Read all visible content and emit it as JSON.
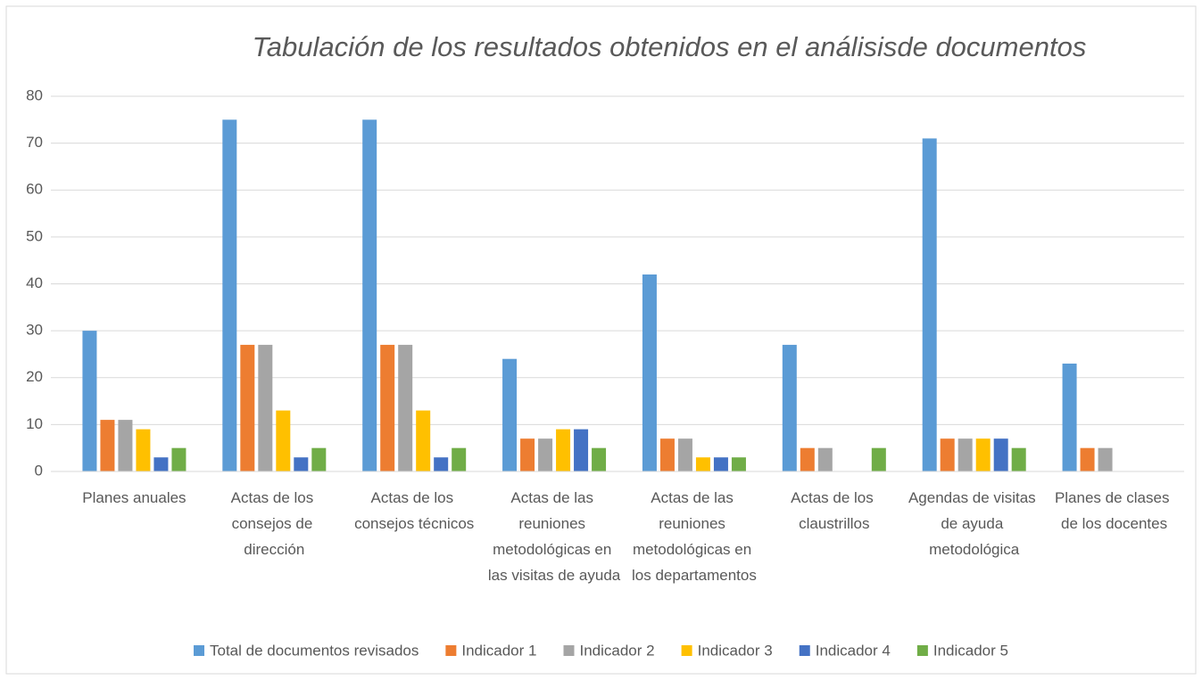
{
  "chart_data": {
    "type": "bar",
    "title": "Tabulación de los resultados obtenidos en el análisisde documentos",
    "categories": [
      "Planes anuales",
      "Actas de los consejos de dirección",
      "Actas de los consejos técnicos",
      "Actas de las reuniones metodológicas en las visitas de ayuda",
      "Actas de las reuniones metodológicas en los departamentos",
      "Actas de los claustrillos",
      "Agendas de visitas de ayuda metodológica",
      "Planes de clases de los docentes"
    ],
    "series": [
      {
        "name": "Total de documentos revisados",
        "color": "#5b9bd5",
        "values": [
          30,
          75,
          75,
          24,
          42,
          27,
          71,
          23
        ]
      },
      {
        "name": "Indicador 1",
        "color": "#ed7d31",
        "values": [
          11,
          27,
          27,
          7,
          7,
          5,
          7,
          5
        ]
      },
      {
        "name": "Indicador 2",
        "color": "#a5a5a5",
        "values": [
          11,
          27,
          27,
          7,
          7,
          5,
          7,
          5
        ]
      },
      {
        "name": "Indicador 3",
        "color": "#ffc000",
        "values": [
          9,
          13,
          13,
          9,
          3,
          0,
          7,
          0
        ]
      },
      {
        "name": "Indicador 4",
        "color": "#4472c4",
        "values": [
          3,
          3,
          3,
          9,
          3,
          0,
          7,
          0
        ]
      },
      {
        "name": "Indicador 5",
        "color": "#70ad47",
        "values": [
          5,
          5,
          5,
          5,
          3,
          5,
          5,
          0
        ]
      }
    ],
    "ylim": [
      0,
      80
    ],
    "yticks": [
      0,
      10,
      20,
      30,
      40,
      50,
      60,
      70,
      80
    ],
    "grid": true,
    "legend": "bottom"
  }
}
